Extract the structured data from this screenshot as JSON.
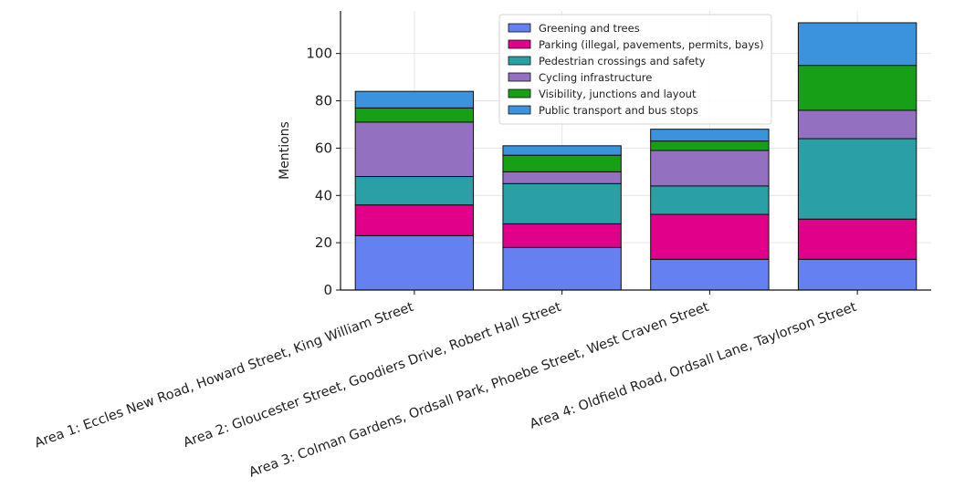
{
  "chart_data": {
    "type": "bar",
    "stacked": true,
    "title": "",
    "xlabel": "",
    "ylabel": "Mentions",
    "ylim": [
      0,
      118
    ],
    "yticks": [
      0,
      20,
      40,
      60,
      80,
      100
    ],
    "grid": true,
    "legend_position": "top-center",
    "categories": [
      "Area 1: Eccles New Road, Howard Street, King William Street",
      "Area 2: Gloucester Street, Goodiers Drive, Robert Hall Street",
      "Area 3: Colman Gardens, Ordsall Park, Phoebe Street, West Craven Street",
      "Area 4: Oldfield Road, Ordsall Lane, Taylorson Street"
    ],
    "series": [
      {
        "name": "Greening and trees",
        "color": "#6580f0",
        "values": [
          23,
          18,
          13,
          13
        ]
      },
      {
        "name": "Parking (illegal, pavements, permits, bays)",
        "color": "#e0008a",
        "values": [
          13,
          10,
          19,
          17
        ]
      },
      {
        "name": "Pedestrian crossings and safety",
        "color": "#2a9fa6",
        "values": [
          12,
          17,
          12,
          34
        ]
      },
      {
        "name": "Cycling infrastructure",
        "color": "#9370c0",
        "values": [
          23,
          5,
          15,
          12
        ]
      },
      {
        "name": "Visibility, junctions and layout",
        "color": "#17a017",
        "values": [
          6,
          7,
          4,
          19
        ]
      },
      {
        "name": "Public transport and bus stops",
        "color": "#3a93dc",
        "values": [
          7,
          4,
          5,
          18
        ]
      }
    ]
  }
}
